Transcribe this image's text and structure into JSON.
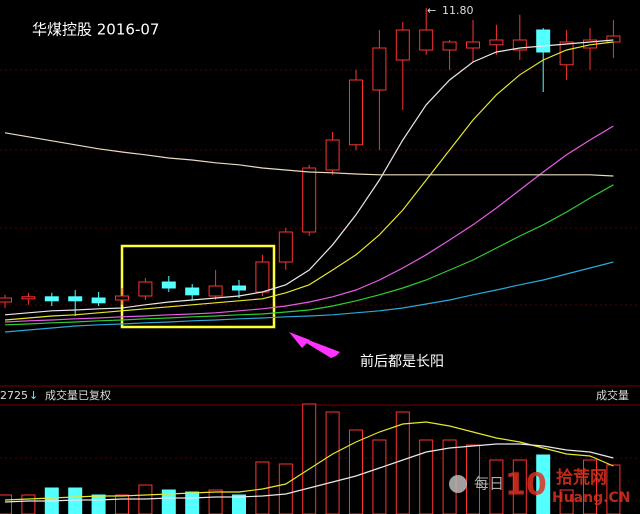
{
  "chart_data": [
    {
      "type": "candlestick",
      "title": "华煤控股 2016-07",
      "annotation": "11.80",
      "callout": "前后都是长阳",
      "up_color": "#ff3232",
      "down_color": "#54ffff",
      "ylim": [
        2.4,
        12
      ],
      "open": [
        4.45,
        4.53,
        4.58,
        4.58,
        4.55,
        4.5,
        4.6,
        4.95,
        4.8,
        4.6,
        4.85,
        4.7,
        5.45,
        6.2,
        7.75,
        8.38,
        9.75,
        10.5,
        10.75,
        10.75,
        10.8,
        10.88,
        10.75,
        11.25,
        10.38,
        10.8,
        10.95
      ],
      "close": [
        4.55,
        4.58,
        4.48,
        4.48,
        4.43,
        4.6,
        4.95,
        4.8,
        4.63,
        4.85,
        4.75,
        5.45,
        6.2,
        7.8,
        8.5,
        10.0,
        10.8,
        11.25,
        11.25,
        10.95,
        10.95,
        11.0,
        11.0,
        10.7,
        10.95,
        11.0,
        11.1
      ],
      "high": [
        4.63,
        4.68,
        4.68,
        4.75,
        4.7,
        4.8,
        5.05,
        5.1,
        4.9,
        5.25,
        5.0,
        5.63,
        6.3,
        7.88,
        8.7,
        10.25,
        11.25,
        11.45,
        11.8,
        11.0,
        11.5,
        11.38,
        11.63,
        11.3,
        11.25,
        11.3,
        11.5
      ],
      "low": [
        4.3,
        4.38,
        4.35,
        4.1,
        4.35,
        4.38,
        4.5,
        4.7,
        4.5,
        4.5,
        4.55,
        4.6,
        5.25,
        6.1,
        7.63,
        8.25,
        8.25,
        9.25,
        10.63,
        10.25,
        10.45,
        10.63,
        10.5,
        9.7,
        10.0,
        10.25,
        10.55
      ],
      "series": [
        {
          "color": "#e8e8e8",
          "values": [
            4.13,
            4.18,
            4.23,
            4.25,
            4.28,
            4.3,
            4.38,
            4.45,
            4.5,
            4.55,
            4.6,
            4.7,
            4.88,
            5.25,
            5.88,
            6.63,
            7.5,
            8.5,
            9.38,
            10.0,
            10.45,
            10.7,
            10.8,
            10.85,
            10.9,
            10.95,
            11.0
          ]
        },
        {
          "color": "#e6e62a",
          "values": [
            4.0,
            4.05,
            4.1,
            4.13,
            4.18,
            4.23,
            4.28,
            4.33,
            4.38,
            4.43,
            4.48,
            4.53,
            4.68,
            4.88,
            5.25,
            5.63,
            6.13,
            6.75,
            7.5,
            8.25,
            9.0,
            9.63,
            10.13,
            10.5,
            10.75,
            10.88,
            10.95
          ]
        },
        {
          "color": "#e65ce6",
          "values": [
            3.95,
            3.98,
            4.0,
            4.03,
            4.05,
            4.08,
            4.1,
            4.13,
            4.15,
            4.18,
            4.23,
            4.28,
            4.35,
            4.45,
            4.58,
            4.75,
            5.0,
            5.3,
            5.63,
            6.0,
            6.38,
            6.8,
            7.25,
            7.7,
            8.13,
            8.5,
            8.85
          ]
        },
        {
          "color": "#2fcc2f",
          "values": [
            3.88,
            3.9,
            3.93,
            3.95,
            3.98,
            4.0,
            4.03,
            4.05,
            4.08,
            4.1,
            4.13,
            4.15,
            4.2,
            4.25,
            4.35,
            4.48,
            4.63,
            4.8,
            5.0,
            5.25,
            5.5,
            5.8,
            6.1,
            6.38,
            6.7,
            7.05,
            7.38
          ]
        },
        {
          "color": "#2aa8d8",
          "values": [
            3.7,
            3.75,
            3.8,
            3.85,
            3.88,
            3.9,
            3.93,
            3.95,
            3.98,
            4.0,
            4.03,
            4.05,
            4.08,
            4.1,
            4.13,
            4.18,
            4.23,
            4.3,
            4.4,
            4.5,
            4.63,
            4.75,
            4.88,
            5.0,
            5.15,
            5.3,
            5.45
          ]
        },
        {
          "color": "#e8dcc0",
          "values": [
            8.68,
            8.58,
            8.48,
            8.38,
            8.28,
            8.2,
            8.13,
            8.05,
            8.0,
            7.93,
            7.88,
            7.8,
            7.75,
            7.7,
            7.68,
            7.65,
            7.63,
            7.63,
            7.63,
            7.63,
            7.63,
            7.63,
            7.63,
            7.63,
            7.63,
            7.63,
            7.6
          ]
        }
      ]
    },
    {
      "type": "bar",
      "title": "成交量已复权",
      "label": "2725",
      "right_label": "成交量",
      "ylim": [
        0,
        115
      ],
      "values": [
        19,
        19,
        26,
        26,
        19,
        19,
        29,
        24,
        22,
        24,
        19,
        52,
        50,
        110,
        102,
        84,
        74,
        102,
        74,
        74,
        69,
        54,
        54,
        59,
        24,
        54,
        49
      ],
      "series": [
        {
          "color": "#e6e62a",
          "values": [
            14,
            15,
            16,
            17,
            18,
            18,
            19,
            20,
            21,
            22,
            22,
            25,
            30,
            45,
            60,
            72,
            82,
            90,
            92,
            88,
            82,
            76,
            72,
            66,
            60,
            58,
            48
          ]
        },
        {
          "color": "#e8e8e8",
          "values": [
            12,
            13,
            13,
            14,
            14,
            15,
            15,
            16,
            16,
            17,
            17,
            18,
            20,
            26,
            32,
            38,
            46,
            54,
            62,
            66,
            68,
            70,
            70,
            68,
            64,
            62,
            56
          ]
        }
      ]
    }
  ],
  "watermark": {
    "text": "每日",
    "logo": "10",
    "site": "拾荒网",
    "url": "Huang.CN"
  }
}
